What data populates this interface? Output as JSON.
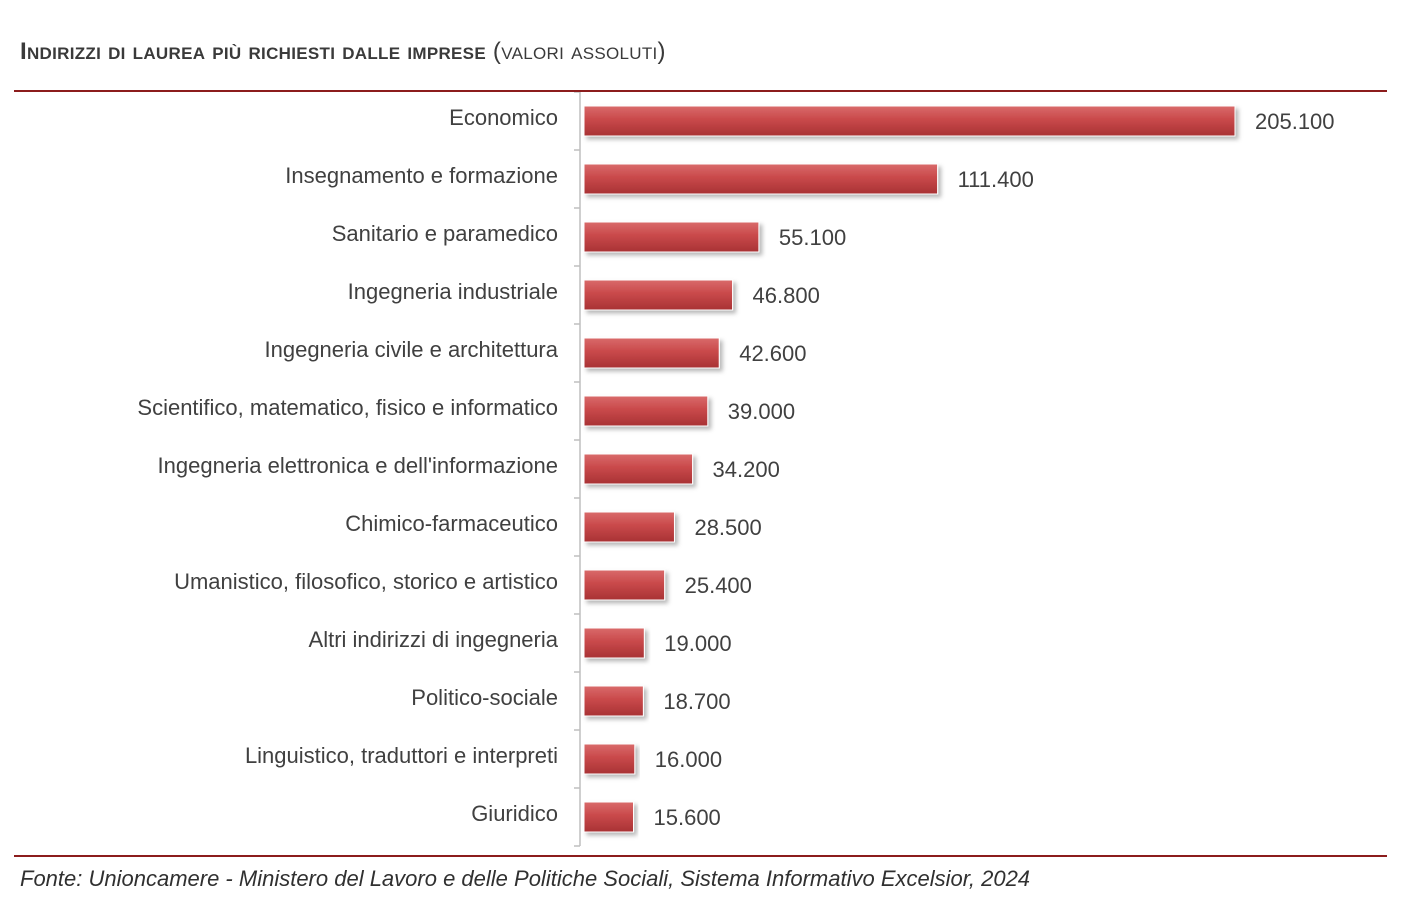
{
  "header": {
    "title_main": "Indirizzi di laurea più richiesti  dalle imprese",
    "title_sub": "(valori assoluti)"
  },
  "footer": {
    "source": "Fonte: Unioncamere - Ministero del Lavoro e delle Politiche Sociali, Sistema Informativo Excelsior, 2024"
  },
  "colors": {
    "bar": "#c9494b",
    "bar_light": "#d96a6a",
    "bar_dark": "#a83234",
    "rule": "#8c1c1c"
  },
  "chart_data": {
    "type": "bar",
    "orientation": "horizontal",
    "title": "Indirizzi di laurea più richiesti  dalle imprese (valori assoluti)",
    "categories": [
      "Economico",
      "Insegnamento e formazione",
      "Sanitario e paramedico",
      "Ingegneria industriale",
      "Ingegneria civile e architettura",
      "Scientifico, matematico, fisico e informatico",
      "Ingegneria elettronica e dell'informazione",
      "Chimico-farmaceutico",
      "Umanistico, filosofico, storico e artistico",
      "Altri indirizzi di ingegneria",
      "Politico-sociale",
      "Linguistico, traduttori e interpreti",
      "Giuridico"
    ],
    "values": [
      205100,
      111400,
      55100,
      46800,
      42600,
      39000,
      34200,
      28500,
      25400,
      19000,
      18700,
      16000,
      15600
    ],
    "value_labels": [
      "205.100",
      "111.400",
      "55.100",
      "46.800",
      "42.600",
      "39.000",
      "34.200",
      "28.500",
      "25.400",
      "19.000",
      "18.700",
      "16.000",
      "15.600"
    ],
    "xlim": [
      0,
      205100
    ],
    "grid": false,
    "legend": "none"
  }
}
